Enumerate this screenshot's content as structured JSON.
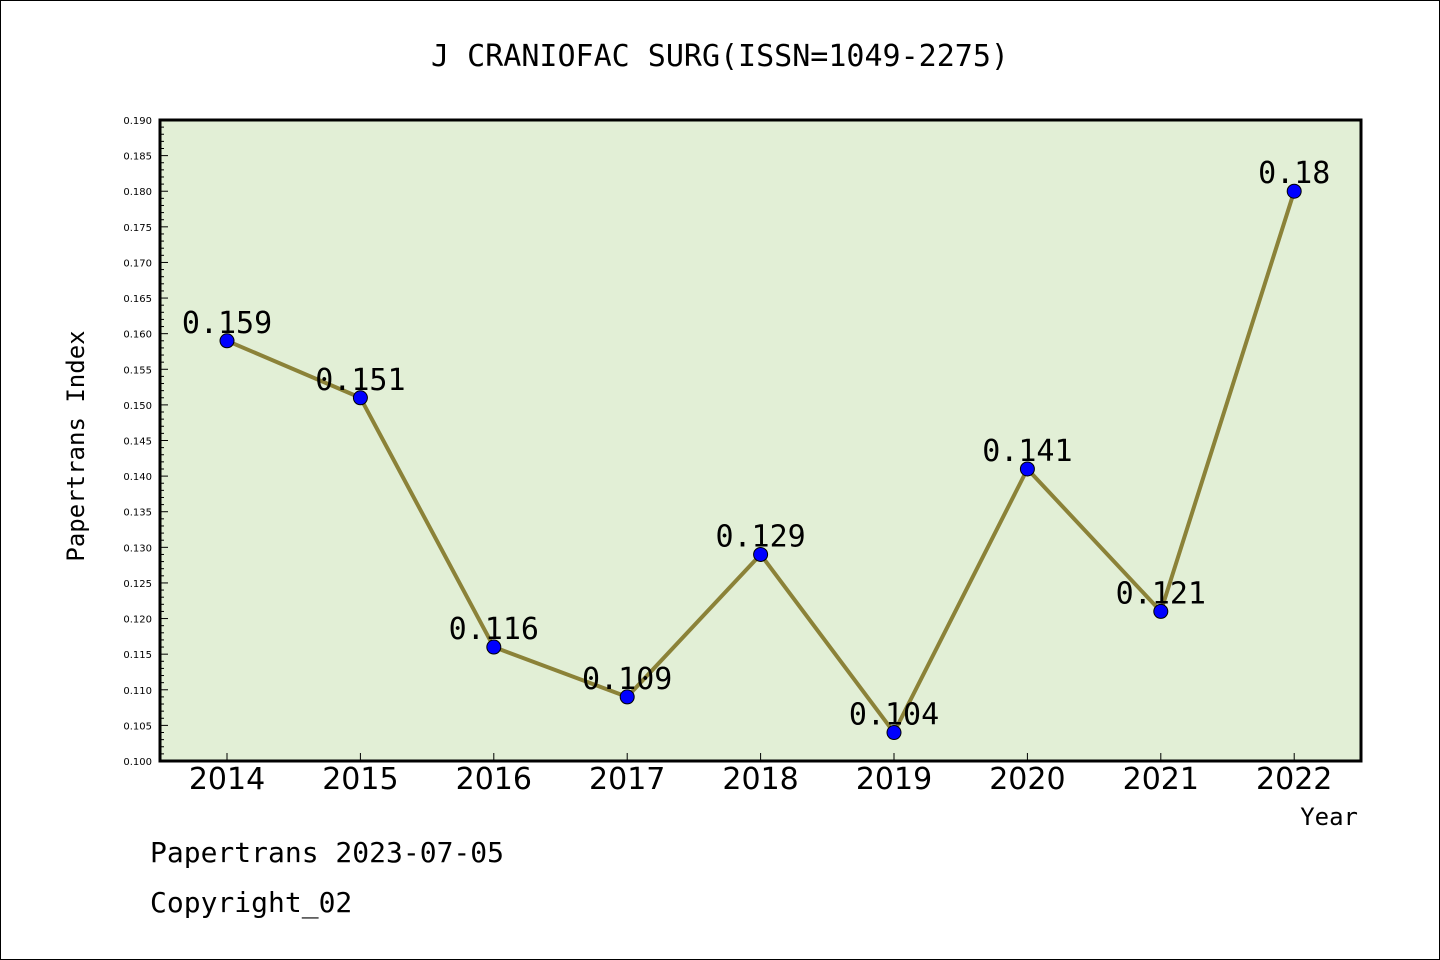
{
  "chart_data": {
    "type": "line",
    "title": "J CRANIOFAC SURG(ISSN=1049-2275)",
    "xlabel": "Year",
    "ylabel": "Papertrans Index",
    "categories": [
      "2014",
      "2015",
      "2016",
      "2017",
      "2018",
      "2019",
      "2020",
      "2021",
      "2022"
    ],
    "series": [
      {
        "values": [
          0.159,
          0.151,
          0.116,
          0.109,
          0.129,
          0.104,
          0.141,
          0.121,
          0.18
        ],
        "labels": [
          "0.159",
          "0.151",
          "0.116",
          "0.109",
          "0.129",
          "0.104",
          "0.141",
          "0.121",
          "0.18"
        ]
      }
    ],
    "ylim": [
      0.1,
      0.19
    ],
    "yticks": [
      "0.100",
      "0.105",
      "0.110",
      "0.115",
      "0.120",
      "0.125",
      "0.130",
      "0.135",
      "0.140",
      "0.145",
      "0.150",
      "0.155",
      "0.160",
      "0.165",
      "0.170",
      "0.175",
      "0.180",
      "0.185",
      "0.190"
    ],
    "grid": false,
    "colors": {
      "plot_bg": "#e2efd6",
      "line": "#8b8238",
      "marker": "#0000ff"
    }
  },
  "footer": {
    "date_line": "Papertrans 2023-07-05",
    "copyright": "Copyright_02"
  }
}
